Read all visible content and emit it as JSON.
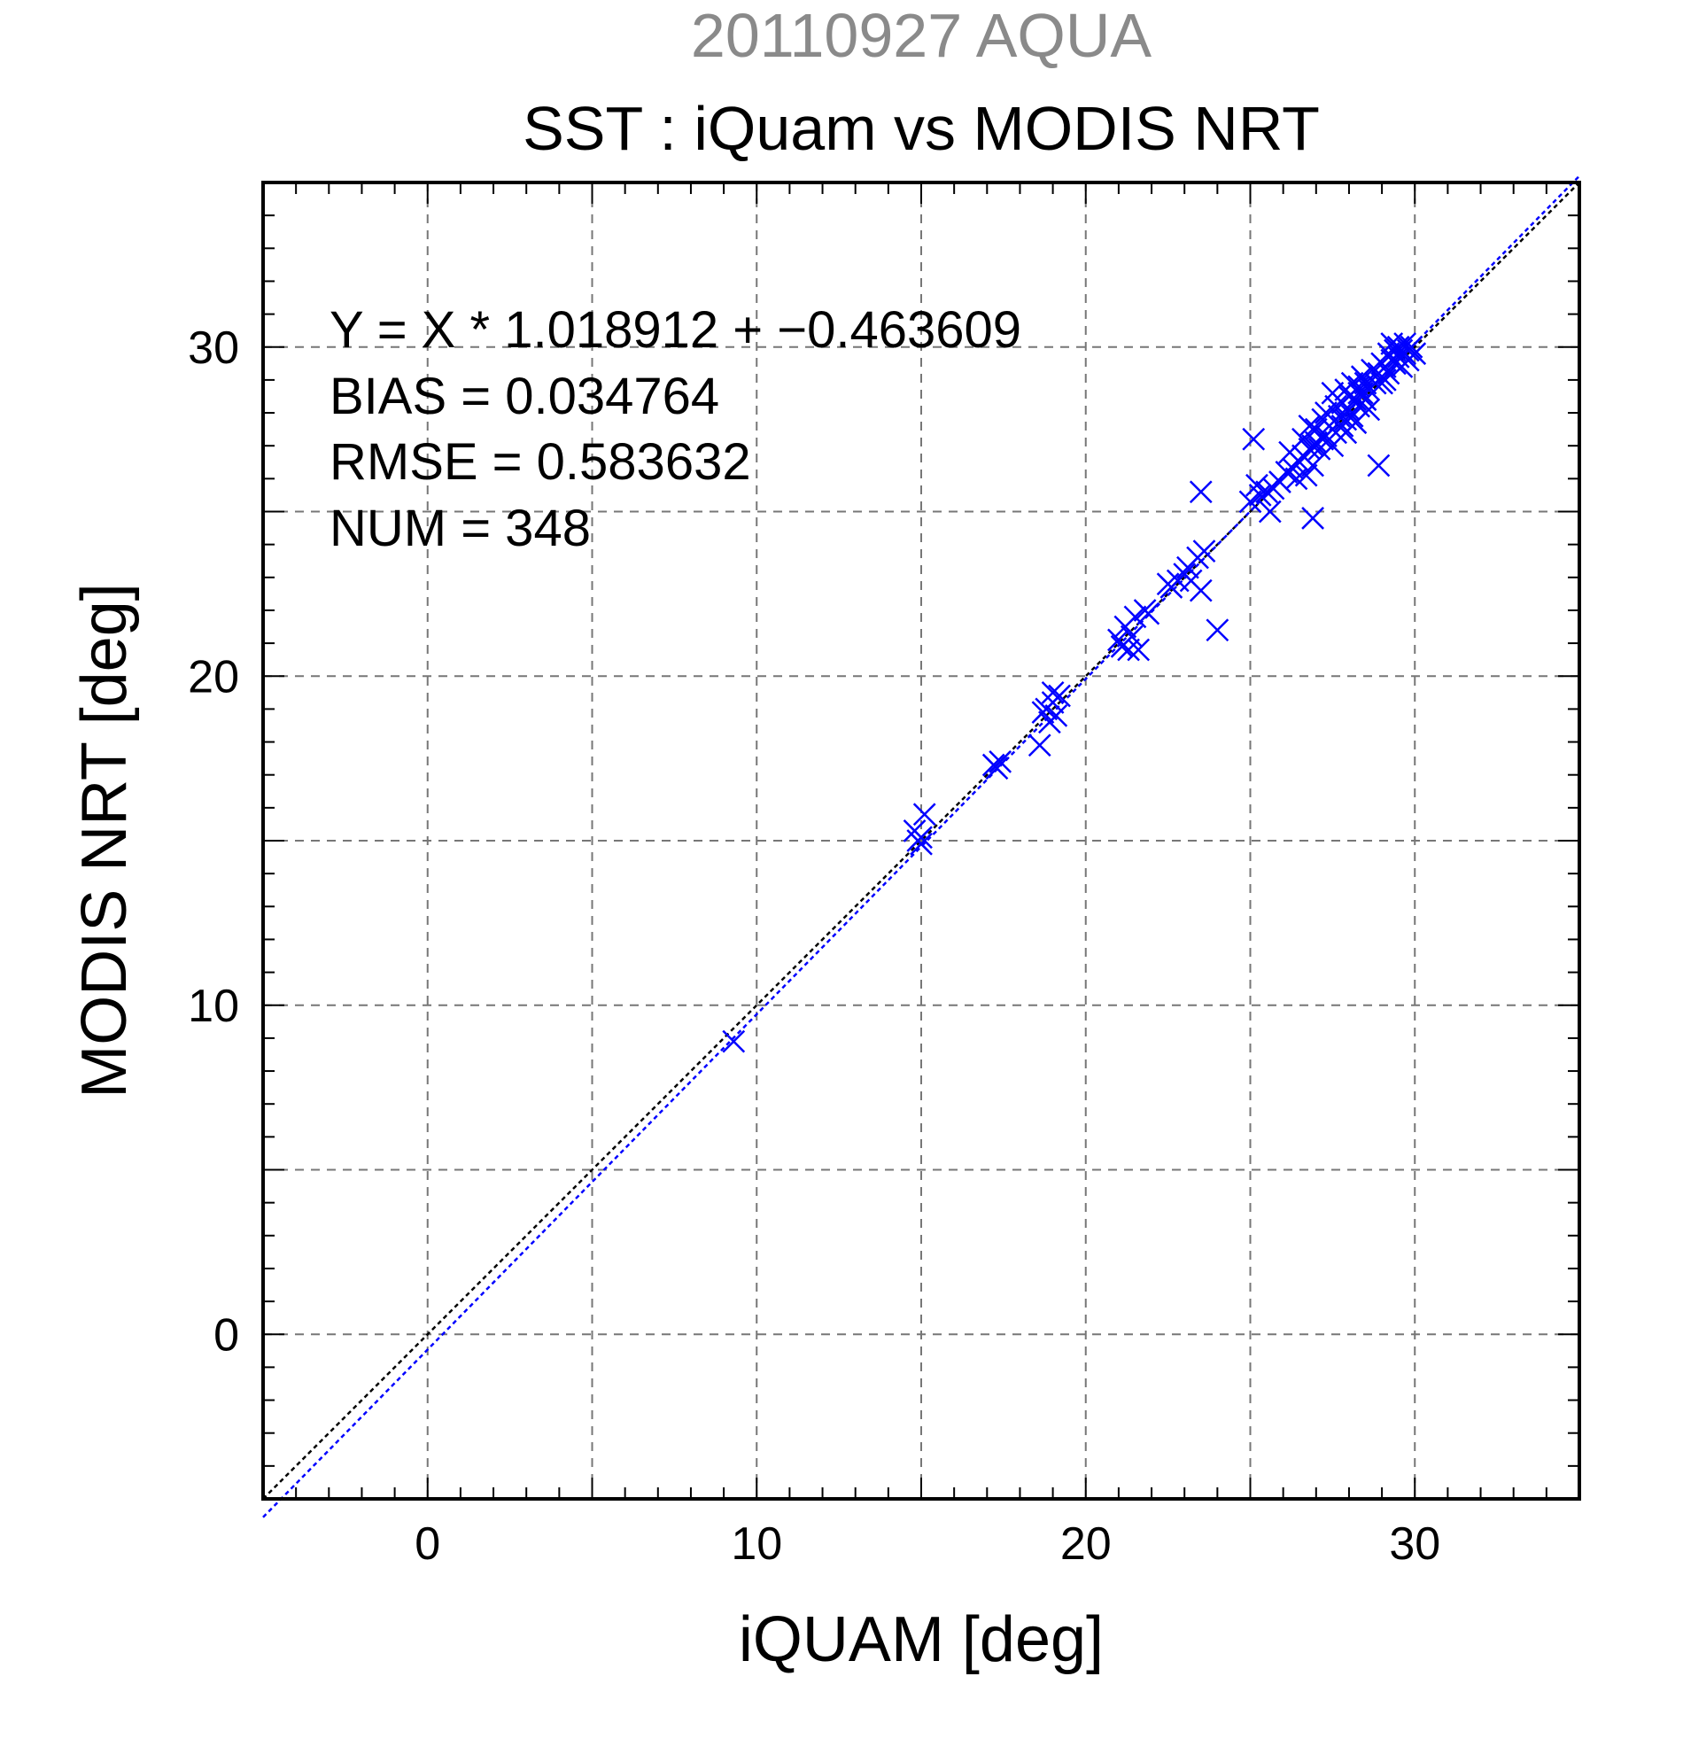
{
  "chart_data": {
    "type": "scatter",
    "title_top": "20110927 AQUA",
    "title": "SST : iQuam vs MODIS NRT",
    "xlabel": "iQUAM [deg]",
    "ylabel": "MODIS NRT [deg]",
    "xlim": [
      -5,
      35
    ],
    "ylim": [
      -5,
      35
    ],
    "major_ticks": [
      0,
      10,
      20,
      30
    ],
    "major_grid_step": 5,
    "minor_tick_step": 1,
    "grid": true,
    "marker": "x",
    "point_color": "#0000ff",
    "annotations": [
      "Y = X * 1.018912 + −0.463609",
      "BIAS = 0.034764",
      "RMSE = 0.583632",
      "NUM = 348"
    ],
    "regression": {
      "slope": 1.018912,
      "intercept": -0.463609,
      "color": "#0000ff"
    },
    "identity_line": {
      "slope": 1,
      "intercept": 0,
      "color": "#000000"
    },
    "points": [
      [
        9.3,
        8.9
      ],
      [
        14.8,
        15.3
      ],
      [
        14.9,
        15.0
      ],
      [
        15.0,
        15.1
      ],
      [
        15.1,
        15.8
      ],
      [
        15.0,
        14.9
      ],
      [
        17.2,
        17.3
      ],
      [
        17.3,
        17.2
      ],
      [
        17.4,
        17.4
      ],
      [
        18.6,
        17.9
      ],
      [
        18.7,
        18.9
      ],
      [
        18.8,
        19.0
      ],
      [
        18.9,
        18.6
      ],
      [
        19.0,
        19.2
      ],
      [
        19.1,
        18.8
      ],
      [
        19.2,
        19.4
      ],
      [
        19.0,
        19.5
      ],
      [
        21.0,
        21.1
      ],
      [
        21.1,
        20.9
      ],
      [
        21.2,
        21.5
      ],
      [
        21.3,
        20.8
      ],
      [
        21.4,
        21.2
      ],
      [
        21.5,
        21.8
      ],
      [
        21.6,
        20.8
      ],
      [
        21.8,
        22.0
      ],
      [
        21.9,
        21.9
      ],
      [
        22.5,
        22.8
      ],
      [
        22.6,
        22.7
      ],
      [
        22.8,
        22.9
      ],
      [
        23.0,
        23.1
      ],
      [
        23.1,
        23.3
      ],
      [
        23.2,
        22.9
      ],
      [
        23.4,
        23.6
      ],
      [
        23.5,
        22.6
      ],
      [
        23.6,
        23.8
      ],
      [
        24.0,
        21.4
      ],
      [
        23.5,
        25.6
      ],
      [
        25.1,
        27.2
      ],
      [
        25.0,
        25.3
      ],
      [
        25.2,
        25.8
      ],
      [
        25.3,
        25.5
      ],
      [
        25.5,
        25.6
      ],
      [
        25.6,
        25.0
      ],
      [
        25.7,
        25.7
      ],
      [
        25.9,
        25.9
      ],
      [
        26.1,
        26.2
      ],
      [
        26.2,
        26.8
      ],
      [
        26.3,
        26.3
      ],
      [
        26.4,
        26.0
      ],
      [
        26.5,
        26.5
      ],
      [
        26.6,
        26.7
      ],
      [
        26.7,
        26.1
      ],
      [
        26.8,
        26.9
      ],
      [
        26.9,
        26.4
      ],
      [
        26.9,
        24.8
      ],
      [
        26.6,
        27.2
      ],
      [
        26.8,
        27.6
      ],
      [
        27.0,
        27.1
      ],
      [
        27.0,
        27.5
      ],
      [
        27.1,
        26.9
      ],
      [
        27.2,
        27.8
      ],
      [
        27.3,
        27.3
      ],
      [
        27.3,
        28.0
      ],
      [
        27.4,
        27.6
      ],
      [
        27.5,
        28.6
      ],
      [
        27.5,
        27.0
      ],
      [
        27.6,
        28.2
      ],
      [
        27.6,
        27.4
      ],
      [
        27.7,
        27.9
      ],
      [
        27.8,
        28.3
      ],
      [
        27.8,
        27.6
      ],
      [
        27.9,
        28.7
      ],
      [
        27.9,
        27.8
      ],
      [
        28.0,
        28.1
      ],
      [
        28.0,
        28.5
      ],
      [
        28.1,
        27.9
      ],
      [
        28.1,
        28.9
      ],
      [
        28.2,
        28.4
      ],
      [
        28.2,
        27.7
      ],
      [
        28.3,
        28.8
      ],
      [
        28.3,
        28.2
      ],
      [
        28.4,
        28.6
      ],
      [
        28.4,
        29.1
      ],
      [
        28.5,
        28.4
      ],
      [
        28.5,
        28.9
      ],
      [
        28.6,
        28.7
      ],
      [
        28.7,
        29.3
      ],
      [
        28.8,
        28.9
      ],
      [
        28.9,
        29.2
      ],
      [
        28.9,
        26.4
      ],
      [
        29.0,
        29.5
      ],
      [
        29.0,
        28.9
      ],
      [
        29.1,
        29.4
      ],
      [
        29.2,
        29.8
      ],
      [
        29.2,
        29.2
      ],
      [
        29.3,
        29.6
      ],
      [
        29.3,
        30.1
      ],
      [
        29.4,
        29.5
      ],
      [
        29.4,
        29.9
      ],
      [
        29.5,
        29.7
      ],
      [
        29.5,
        30.0
      ],
      [
        29.6,
        29.4
      ],
      [
        29.6,
        29.9
      ],
      [
        29.7,
        29.8
      ],
      [
        29.7,
        30.1
      ],
      [
        29.8,
        29.6
      ],
      [
        29.8,
        29.9
      ],
      [
        29.9,
        30.0
      ],
      [
        30.0,
        29.8
      ],
      [
        28.6,
        28.1
      ],
      [
        27.9,
        27.4
      ],
      [
        28.3,
        28.6
      ],
      [
        29.1,
        29.0
      ],
      [
        27.2,
        27.2
      ],
      [
        26.9,
        27.0
      ]
    ]
  }
}
